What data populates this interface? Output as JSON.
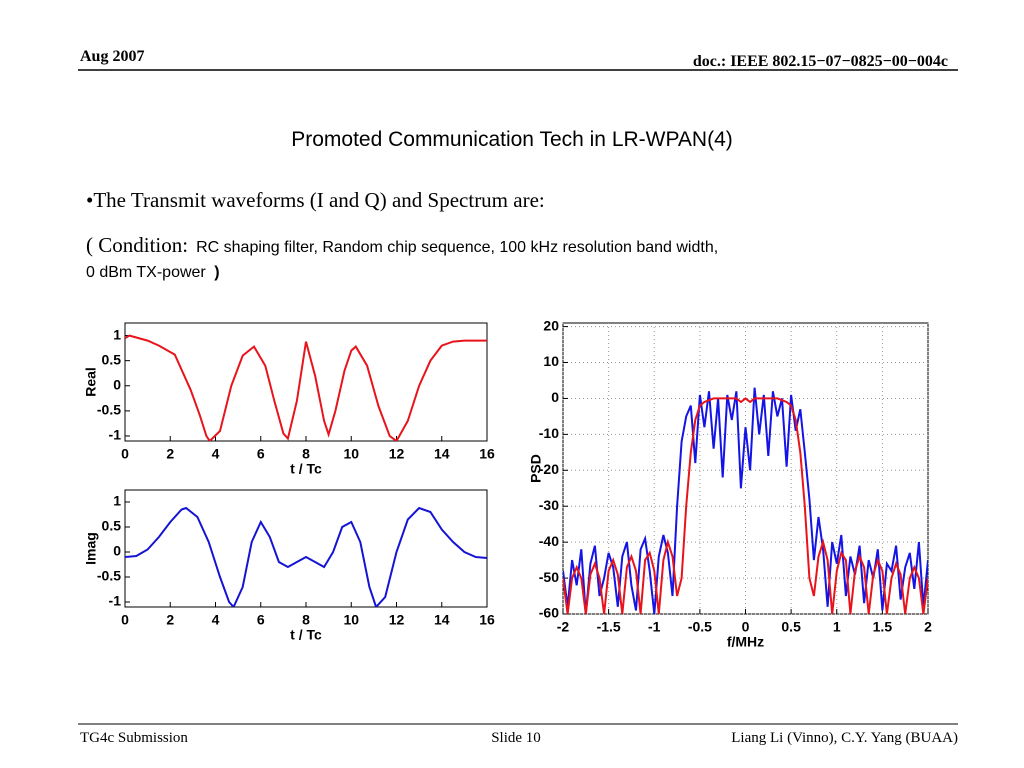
{
  "header": {
    "date": "Aug 2007",
    "doc": "doc.: IEEE 802.15−07−0825−00−004c"
  },
  "title": "Promoted Communication Tech in LR-WPAN(4)",
  "bullet": "•The Transmit waveforms (I and Q) and Spectrum are:",
  "condition": {
    "open": "( Condition:",
    "line1": "RC shaping filter, Random chip sequence,  100 kHz resolution band width,",
    "line2": "0 dBm TX-power",
    "close": ")"
  },
  "footer": {
    "left": "TG4c Submission",
    "center": "Slide 10",
    "right": "Liang Li (Vinno), C.Y. Yang (BUAA)"
  },
  "chart_data": [
    {
      "type": "line",
      "ylabel": "Real",
      "xlabel": "t / Tc",
      "x": [
        0,
        0.2,
        1,
        1.5,
        2.2,
        2.9,
        3.3,
        3.6,
        3.75,
        4.2,
        4.7,
        5.2,
        5.7,
        6.2,
        6.6,
        7.0,
        7.2,
        7.6,
        8.0,
        8.4,
        8.8,
        9.0,
        9.3,
        9.7,
        10.0,
        10.2,
        10.7,
        11.2,
        11.7,
        12.0,
        12.5,
        13.0,
        13.5,
        14.0,
        14.5,
        15.0,
        16.0
      ],
      "series": [
        {
          "color": "#e8141c",
          "values": [
            0.95,
            1,
            0.9,
            0.8,
            0.62,
            -0.08,
            -0.58,
            -1.0,
            -1.1,
            -0.9,
            0,
            0.6,
            0.78,
            0.4,
            -0.3,
            -0.95,
            -1.05,
            -0.3,
            0.88,
            0.2,
            -0.7,
            -0.97,
            -0.5,
            0.3,
            0.7,
            0.78,
            0.4,
            -0.4,
            -1.0,
            -1.1,
            -0.7,
            0,
            0.5,
            0.8,
            0.88,
            0.9,
            0.9
          ]
        }
      ],
      "xlim": [
        0,
        16
      ],
      "xticks": [
        0,
        2,
        4,
        6,
        8,
        10,
        12,
        14,
        16
      ],
      "ylim": [
        -1.1,
        1.25
      ],
      "yticks": [
        -1,
        -0.5,
        0,
        0.5,
        1
      ],
      "grid": false
    },
    {
      "type": "line",
      "ylabel": "Imag",
      "xlabel": "t / Tc",
      "x": [
        0,
        0.5,
        1,
        1.5,
        2,
        2.5,
        2.7,
        3.2,
        3.7,
        4.2,
        4.6,
        4.8,
        5.2,
        5.6,
        6,
        6.4,
        6.8,
        7.2,
        7.6,
        8,
        8.4,
        8.8,
        9.2,
        9.6,
        10,
        10.4,
        10.8,
        11.1,
        11.5,
        12,
        12.5,
        13,
        13.5,
        14,
        14.5,
        15,
        15.5,
        16
      ],
      "series": [
        {
          "color": "#1414d2",
          "values": [
            -0.1,
            -0.08,
            0.05,
            0.3,
            0.6,
            0.85,
            0.88,
            0.7,
            0.2,
            -0.5,
            -1.0,
            -1.1,
            -0.7,
            0.2,
            0.6,
            0.3,
            -0.2,
            -0.3,
            -0.2,
            -0.1,
            -0.2,
            -0.3,
            0,
            0.5,
            0.6,
            0.2,
            -0.7,
            -1.1,
            -0.9,
            0,
            0.65,
            0.88,
            0.8,
            0.45,
            0.2,
            0,
            -0.1,
            -0.12
          ]
        }
      ],
      "xlim": [
        0,
        16
      ],
      "xticks": [
        0,
        2,
        4,
        6,
        8,
        10,
        12,
        14,
        16
      ],
      "ylim": [
        -1.1,
        1.24
      ],
      "yticks": [
        -1,
        -0.5,
        0,
        0.5,
        1
      ],
      "grid": false
    },
    {
      "type": "line",
      "ylabel": "PSD",
      "xlabel": "f/MHz",
      "x": [
        -2,
        -1.95,
        -1.9,
        -1.85,
        -1.8,
        -1.75,
        -1.7,
        -1.65,
        -1.6,
        -1.55,
        -1.5,
        -1.45,
        -1.4,
        -1.35,
        -1.3,
        -1.25,
        -1.2,
        -1.15,
        -1.1,
        -1.05,
        -1,
        -0.95,
        -0.9,
        -0.85,
        -0.8,
        -0.75,
        -0.7,
        -0.65,
        -0.6,
        -0.55,
        -0.5,
        -0.45,
        -0.4,
        -0.35,
        -0.3,
        -0.25,
        -0.2,
        -0.15,
        -0.1,
        -0.05,
        0,
        0.05,
        0.1,
        0.15,
        0.2,
        0.25,
        0.3,
        0.35,
        0.4,
        0.45,
        0.5,
        0.55,
        0.6,
        0.65,
        0.7,
        0.75,
        0.8,
        0.85,
        0.9,
        0.95,
        1,
        1.05,
        1.1,
        1.15,
        1.2,
        1.25,
        1.3,
        1.35,
        1.4,
        1.45,
        1.5,
        1.55,
        1.6,
        1.65,
        1.7,
        1.75,
        1.8,
        1.85,
        1.9,
        1.95,
        2
      ],
      "series": [
        {
          "color": "#1414e6",
          "values": [
            -48,
            -58,
            -45,
            -52,
            -42,
            -60,
            -46,
            -41,
            -55,
            -50,
            -43,
            -47,
            -58,
            -44,
            -40,
            -52,
            -59,
            -42,
            -39,
            -48,
            -60,
            -44,
            -38,
            -43,
            -55,
            -30,
            -12,
            -5,
            -2,
            -18,
            1,
            -8,
            2,
            -14,
            0,
            -22,
            1,
            -6,
            2,
            -25,
            -8,
            -20,
            3,
            -10,
            1,
            -16,
            2,
            -5,
            0,
            -19,
            1,
            -9,
            -3,
            -15,
            -28,
            -45,
            -33,
            -42,
            -58,
            -40,
            -46,
            -38,
            -55,
            -44,
            -49,
            -41,
            -57,
            -45,
            -50,
            -42,
            -59,
            -46,
            -48,
            -41,
            -56,
            -47,
            -43,
            -53,
            -40,
            -58,
            -45
          ]
        },
        {
          "color": "#e8141c",
          "values": [
            -50,
            -60,
            -50,
            -47,
            -50,
            -60,
            -49,
            -46,
            -50,
            -60,
            -48,
            -45,
            -49,
            -60,
            -47,
            -44,
            -48,
            -60,
            -45,
            -43,
            -48,
            -60,
            -45,
            -40,
            -44,
            -55,
            -50,
            -30,
            -15,
            -6,
            -2,
            -1,
            -0.5,
            0,
            0,
            0,
            0,
            0,
            0,
            -1,
            0,
            -1,
            0,
            0,
            0,
            0,
            0,
            0,
            -0.5,
            -1,
            -2,
            -6,
            -15,
            -30,
            -50,
            -55,
            -44,
            -40,
            -45,
            -60,
            -48,
            -43,
            -45,
            -60,
            -48,
            -44,
            -47,
            -60,
            -49,
            -45,
            -48,
            -60,
            -50,
            -46,
            -49,
            -60,
            -50,
            -47,
            -50,
            -60,
            -50
          ]
        }
      ],
      "xlim": [
        -2,
        2
      ],
      "xticks": [
        -2,
        -1.5,
        -1,
        -0.5,
        0,
        0.5,
        1,
        1.5,
        2
      ],
      "ylim": [
        -60,
        21
      ],
      "yticks": [
        20,
        10,
        0,
        -10,
        -20,
        -30,
        -40,
        -50,
        -60
      ],
      "grid": true
    }
  ]
}
